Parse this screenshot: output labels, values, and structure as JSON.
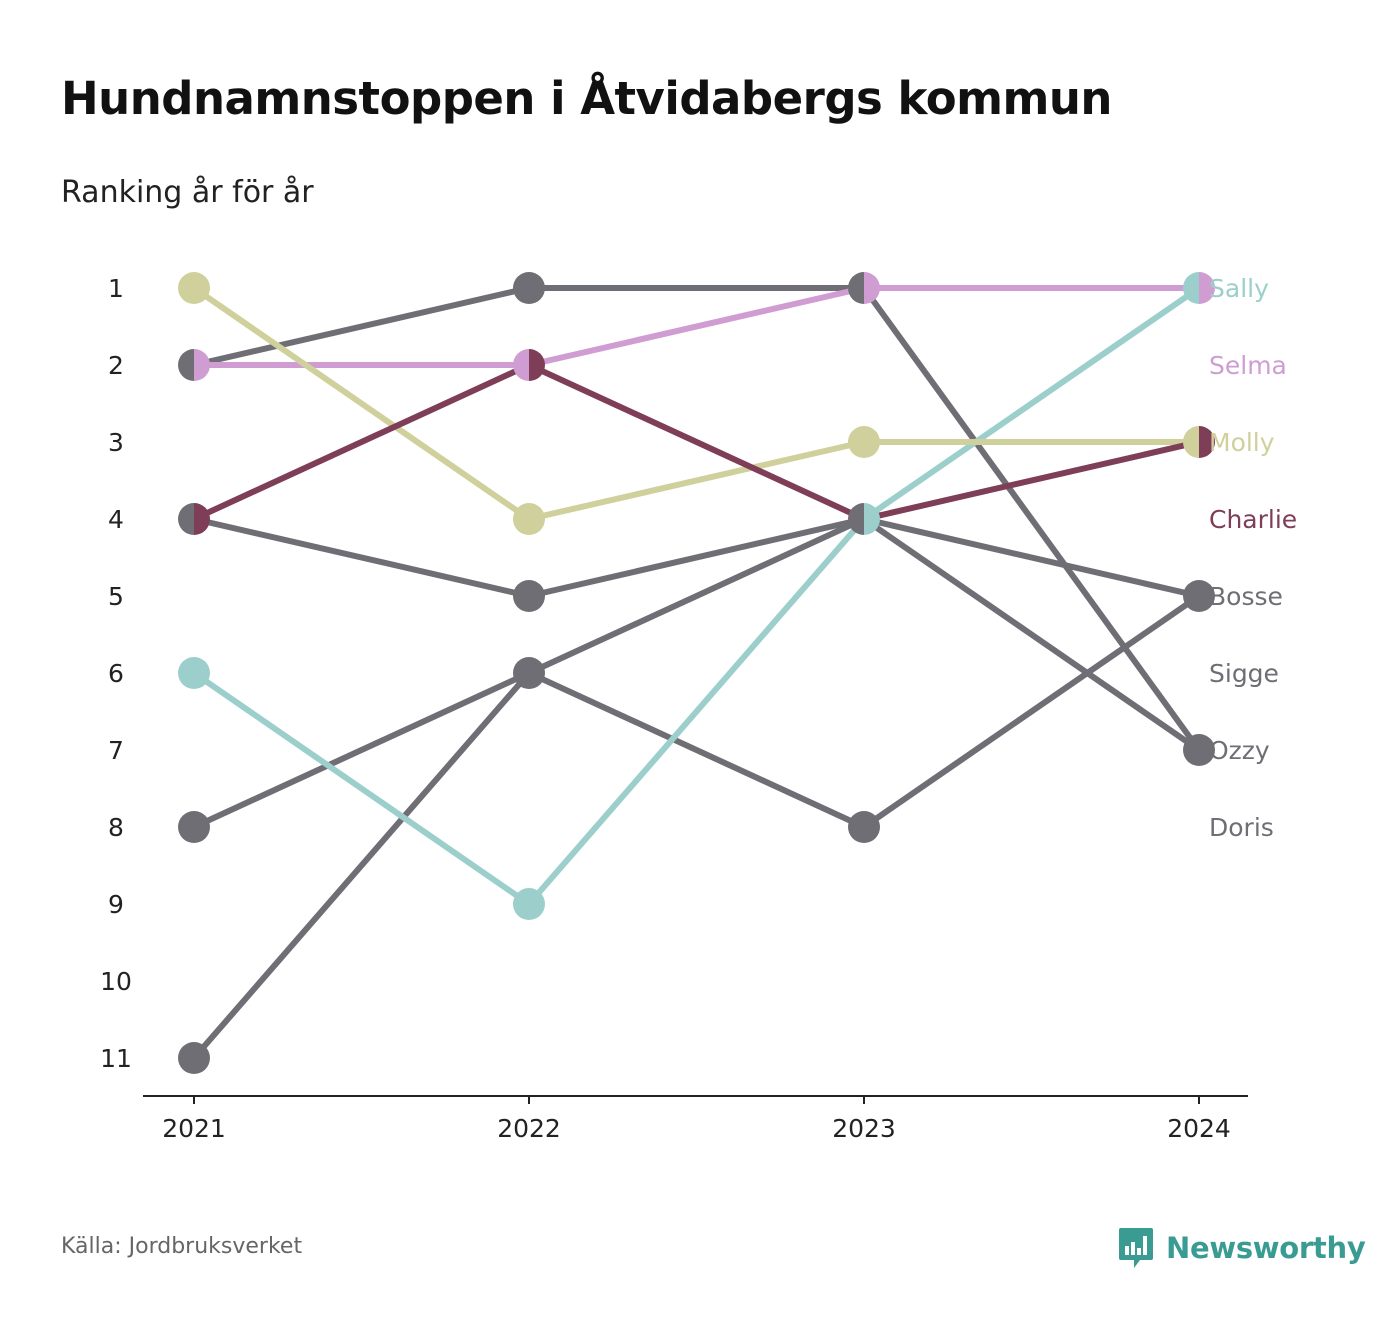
{
  "header": {
    "title": "Hundnamnstoppen i Åtvidabergs kommun",
    "subtitle": "Ranking år för år"
  },
  "footer": {
    "source": "Källa: Jordbruksverket",
    "brand": "Newsworthy",
    "brand_icon": "newsworthy-logo-icon"
  },
  "colors": {
    "Sally": "#9ccfcc",
    "Selma": "#cf9dd2",
    "Molly": "#d0d09c",
    "Charlie": "#7e3e57",
    "other": "#6f6e75",
    "axis": "#222222"
  },
  "chart_data": {
    "type": "line",
    "subtype": "bump",
    "x": [
      "2021",
      "2022",
      "2023",
      "2024"
    ],
    "y_ticks": [
      "1",
      "2",
      "3",
      "4",
      "5",
      "6",
      "7",
      "8",
      "9",
      "10",
      "11"
    ],
    "y_reversed": true,
    "ylim": [
      1,
      11
    ],
    "grid": false,
    "legend": "direct labels at right",
    "series": [
      {
        "name": "Sally",
        "values": [
          6,
          9,
          4,
          1
        ]
      },
      {
        "name": "Selma",
        "values": [
          2,
          2,
          1,
          1
        ]
      },
      {
        "name": "Molly",
        "values": [
          1,
          4,
          3,
          3
        ]
      },
      {
        "name": "Charlie",
        "values": [
          4,
          2,
          4,
          3
        ]
      },
      {
        "name": "Bosse",
        "values": [
          11,
          6,
          8,
          5
        ]
      },
      {
        "name": "Sigge",
        "values": [
          8,
          6,
          4,
          7
        ]
      },
      {
        "name": "Ozzy",
        "values": [
          2,
          1,
          1,
          7
        ]
      },
      {
        "name": "Doris",
        "values": [
          4,
          5,
          4,
          5
        ]
      }
    ],
    "labels_right": [
      {
        "text": "Sally",
        "rank": 1
      },
      {
        "text": "Selma",
        "rank": 2
      },
      {
        "text": "Molly",
        "rank": 3
      },
      {
        "text": "Charlie",
        "rank": 4
      },
      {
        "text": "Bosse",
        "rank": 5
      },
      {
        "text": "Sigge",
        "rank": 6
      },
      {
        "text": "Ozzy",
        "rank": 7
      },
      {
        "text": "Doris",
        "rank": 8
      }
    ]
  }
}
